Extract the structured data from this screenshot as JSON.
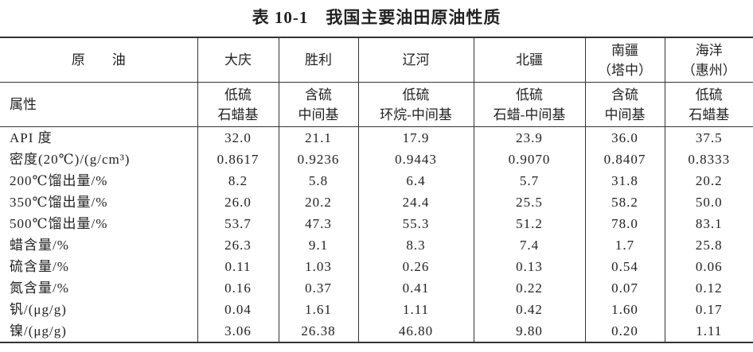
{
  "title": "表 10-1　我国主要油田原油性质",
  "table": {
    "header": [
      [
        "原　　油",
        [
          "大庆"
        ],
        [
          "胜利"
        ],
        [
          "辽河"
        ],
        [
          "北疆"
        ],
        [
          "南疆",
          "（塔中）"
        ],
        [
          "海洋",
          "（惠州）"
        ]
      ],
      [
        "属性",
        [
          "低硫",
          "石蜡基"
        ],
        [
          "含硫",
          "中间基"
        ],
        [
          "低硫",
          "环烷-中间基"
        ],
        [
          "低硫",
          "石蜡-中间基"
        ],
        [
          "含硫",
          "中间基"
        ],
        [
          "低硫",
          "石蜡基"
        ]
      ]
    ],
    "rows": [
      [
        "API 度",
        "32.0",
        "21.1",
        "17.9",
        "23.9",
        "36.0",
        "37.5"
      ],
      [
        "密度(20℃)/(g/cm³)",
        "0.8617",
        "0.9236",
        "0.9443",
        "0.9070",
        "0.8407",
        "0.8333"
      ],
      [
        "200℃馏出量/%",
        "8.2",
        "5.8",
        "6.4",
        "5.7",
        "31.8",
        "20.2"
      ],
      [
        "350℃馏出量/%",
        "26.0",
        "20.2",
        "24.4",
        "25.5",
        "58.2",
        "50.0"
      ],
      [
        "500℃馏出量/%",
        "53.7",
        "47.3",
        "55.3",
        "51.2",
        "78.0",
        "83.1"
      ],
      [
        "蜡含量/%",
        "26.3",
        "9.1",
        "8.3",
        "7.4",
        "1.7",
        "25.8"
      ],
      [
        "硫含量/%",
        "0.11",
        "1.03",
        "0.26",
        "0.13",
        "0.54",
        "0.06"
      ],
      [
        "氮含量/%",
        "0.16",
        "0.37",
        "0.41",
        "0.22",
        "0.07",
        "0.12"
      ],
      [
        "钒/(μg/g)",
        "0.04",
        "1.61",
        "1.11",
        "0.42",
        "1.60",
        "0.17"
      ],
      [
        "镍/(μg/g)",
        "3.06",
        "26.38",
        "46.80",
        "9.80",
        "0.20",
        "1.11"
      ]
    ]
  }
}
